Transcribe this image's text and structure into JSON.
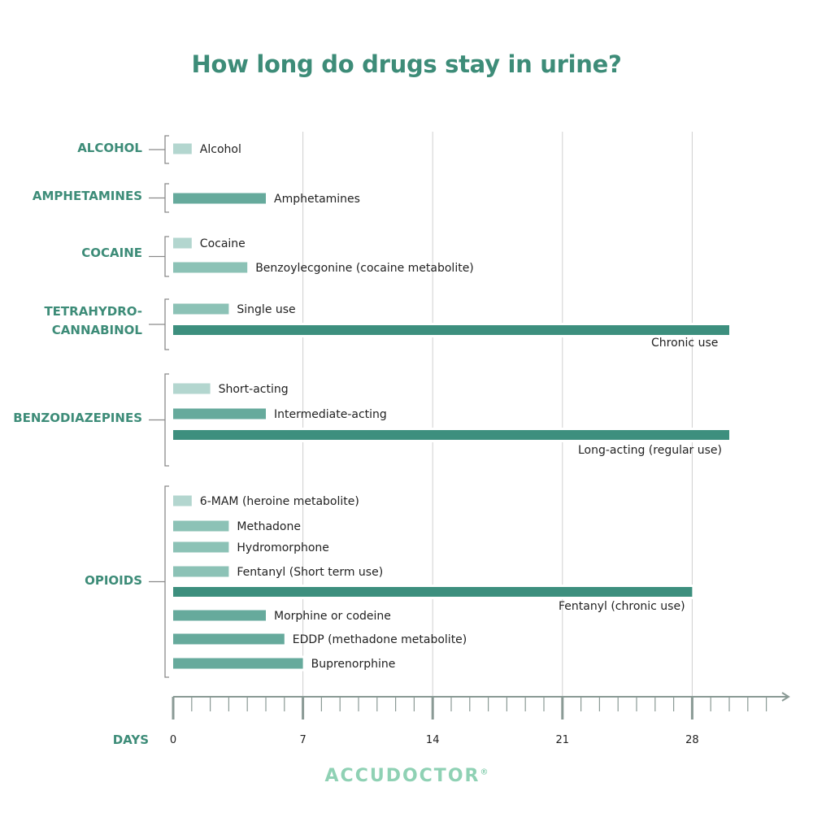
{
  "title": "How long do drugs stay in urine?",
  "brand": {
    "name": "ACCUDOCTOR",
    "mark": "®"
  },
  "colors": {
    "title": "#3d8c78",
    "light": "#b3d6cf",
    "medium": "#8cc2b6",
    "mid": "#66aa9c",
    "dark": "#3d8f7e",
    "grid": "#d0d0d0",
    "axis": "#8a9a95",
    "bracket": "#8a8a8a"
  },
  "chart_data": {
    "type": "bar",
    "orientation": "horizontal",
    "title": "How long do drugs stay in urine?",
    "xlabel": "DAYS",
    "x_ticks": [
      0,
      7,
      14,
      21,
      28
    ],
    "xlim": [
      0,
      33
    ],
    "grid": true,
    "groups": [
      {
        "name": "ALCOHOL",
        "bars": [
          {
            "label": "Alcohol",
            "days": 1,
            "shade": "light"
          }
        ]
      },
      {
        "name": "AMPHETAMINES",
        "bars": [
          {
            "label": "Amphetamines",
            "days": 5,
            "shade": "mid"
          }
        ]
      },
      {
        "name": "COCAINE",
        "bars": [
          {
            "label": "Cocaine",
            "days": 1,
            "shade": "light"
          },
          {
            "label": "Benzoylecgonine (cocaine metabolite)",
            "days": 4,
            "shade": "medium"
          }
        ]
      },
      {
        "name": "TETRAHYDRO-\nCANNABINOL",
        "bars": [
          {
            "label": "Single use",
            "days": 3,
            "shade": "medium"
          },
          {
            "label": "Chronic use",
            "days": 30,
            "shade": "dark"
          }
        ]
      },
      {
        "name": "BENZODIAZEPINES",
        "bars": [
          {
            "label": "Short-acting",
            "days": 2,
            "shade": "light"
          },
          {
            "label": "Intermediate-acting",
            "days": 5,
            "shade": "mid"
          },
          {
            "label": "Long-acting (regular use)",
            "days": 30,
            "shade": "dark"
          }
        ]
      },
      {
        "name": "OPIOIDS",
        "bars": [
          {
            "label": "6-MAM (heroine metabolite)",
            "days": 1,
            "shade": "light"
          },
          {
            "label": "Methadone",
            "days": 3,
            "shade": "medium"
          },
          {
            "label": "Hydromorphone",
            "days": 3,
            "shade": "medium"
          },
          {
            "label": "Fentanyl (Short term use)",
            "days": 3,
            "shade": "medium"
          },
          {
            "label": "Fentanyl (chronic use)",
            "days": 28,
            "shade": "dark"
          },
          {
            "label": "Morphine or codeine",
            "days": 5,
            "shade": "mid"
          },
          {
            "label": "EDDP (methadone metabolite)",
            "days": 6,
            "shade": "mid"
          },
          {
            "label": "Buprenorphine",
            "days": 7,
            "shade": "mid"
          }
        ]
      }
    ]
  }
}
